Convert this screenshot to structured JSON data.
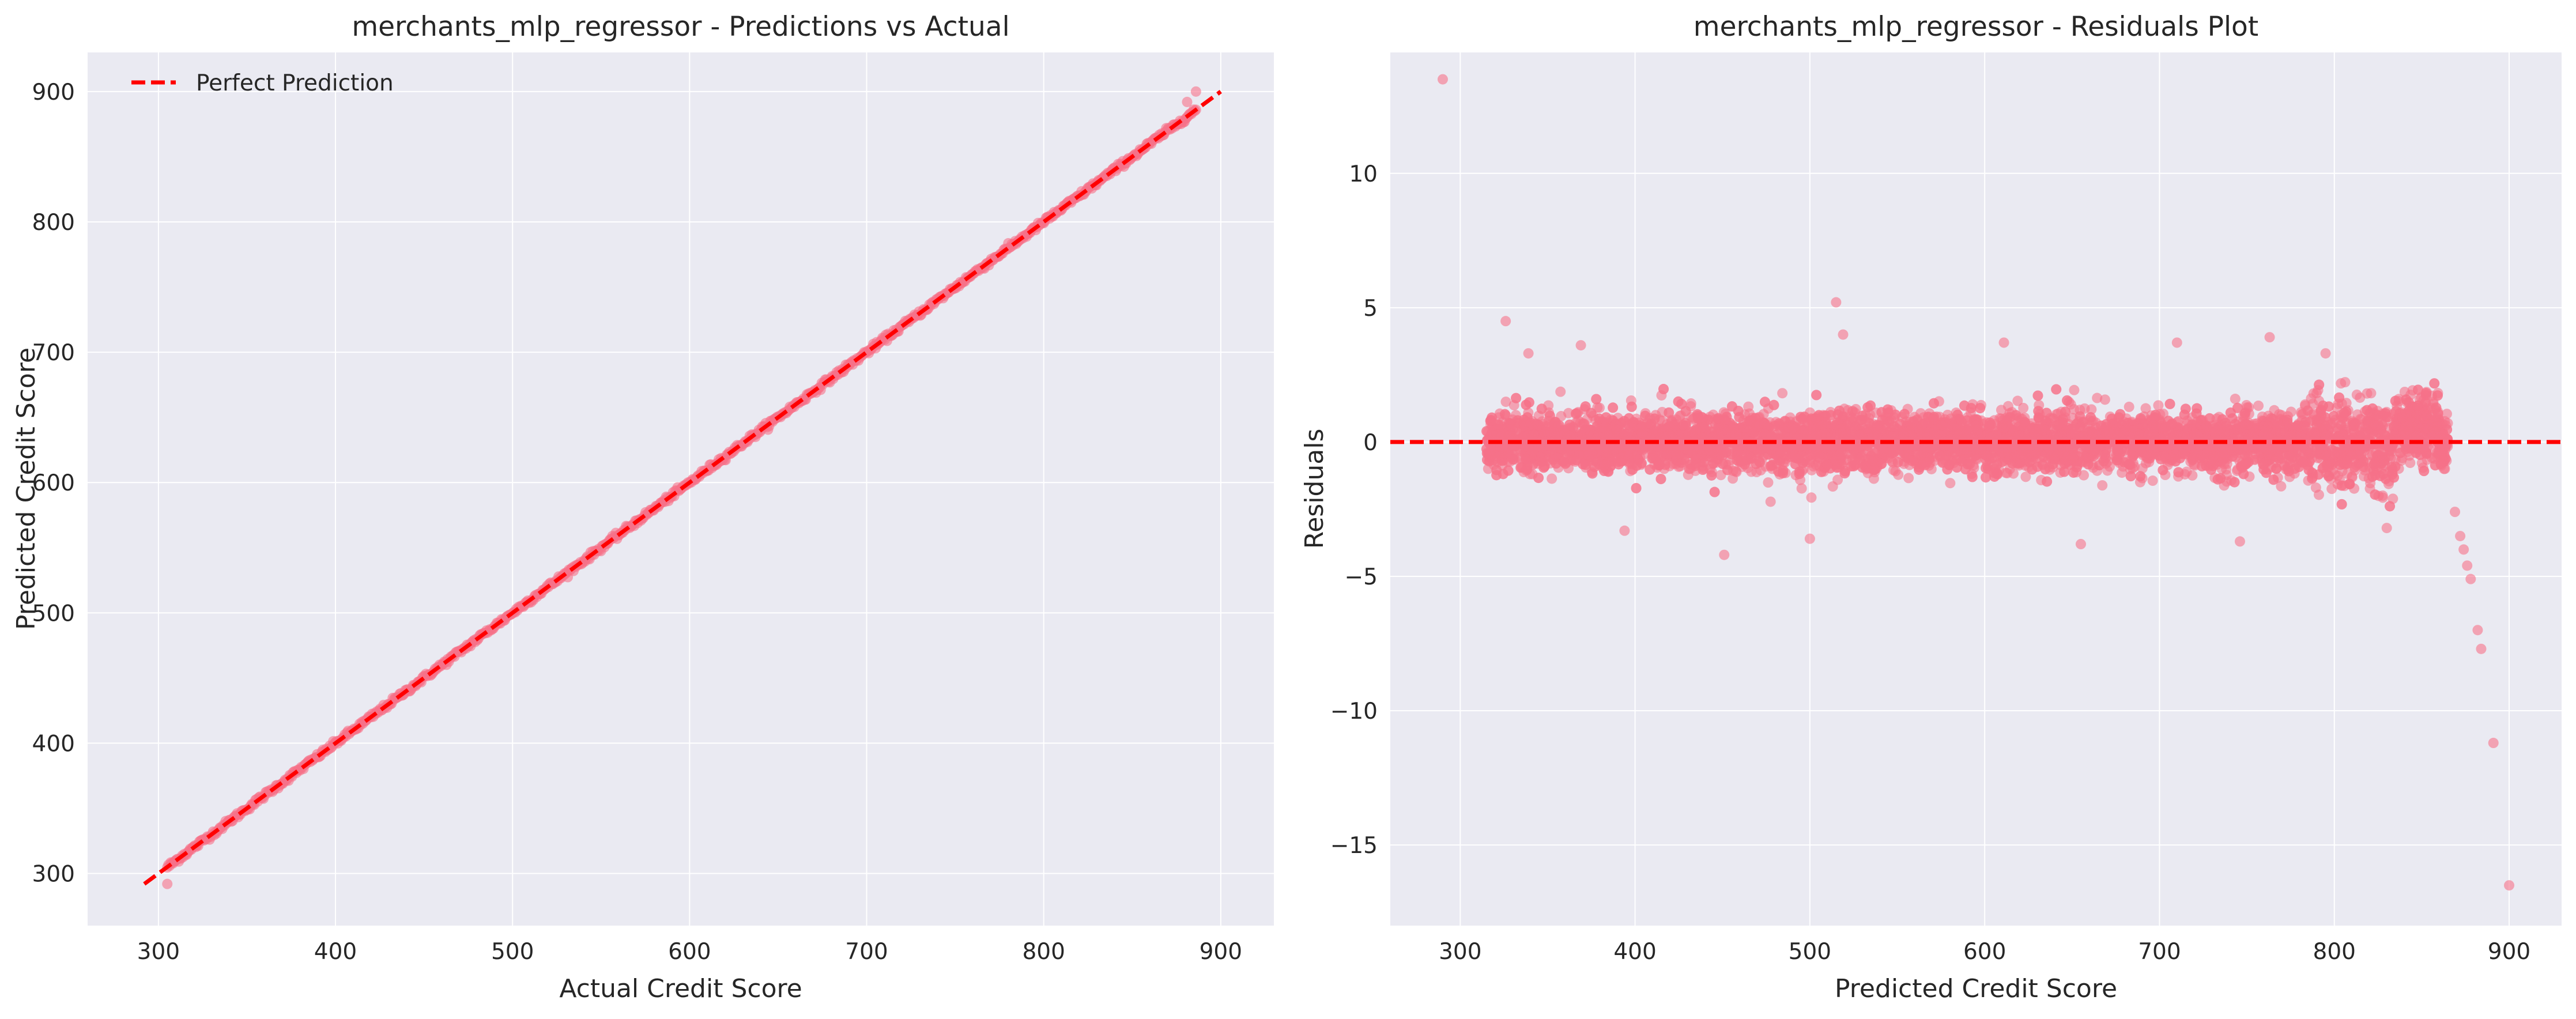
{
  "colors": {
    "plot_bg": "#eaeaf2",
    "grid": "#ffffff",
    "point": "#f77189",
    "reference_line": "#ff0000",
    "text": "#262626"
  },
  "chart_data": [
    {
      "type": "scatter",
      "title": "merchants_mlp_regressor - Predictions vs Actual",
      "xlabel": "Actual Credit Score",
      "ylabel": "Predicted Credit Score",
      "xlim": [
        260,
        930
      ],
      "ylim": [
        260,
        930
      ],
      "xticks": [
        300,
        400,
        500,
        600,
        700,
        800,
        900
      ],
      "yticks": [
        300,
        400,
        500,
        600,
        700,
        800,
        900
      ],
      "grid": true,
      "legend": {
        "position": "top-left",
        "entries": [
          "Perfect Prediction"
        ]
      },
      "reference_line": {
        "label": "Perfect Prediction",
        "style": "dashed",
        "x": [
          292,
          900
        ],
        "y": [
          292,
          900
        ]
      },
      "series": [
        {
          "name": "predictions",
          "description": "points lying along the diagonal y = x",
          "x_range": [
            305,
            886
          ],
          "y_range": [
            292,
            900
          ],
          "outliers": [
            {
              "x": 305,
              "y": 292
            },
            {
              "x": 886,
              "y": 900
            },
            {
              "x": 881,
              "y": 892
            }
          ]
        }
      ]
    },
    {
      "type": "scatter",
      "title": "merchants_mlp_regressor - Residuals Plot",
      "xlabel": "Predicted Credit Score",
      "ylabel": "Residuals",
      "xlim": [
        260,
        930
      ],
      "ylim": [
        -18,
        14.5
      ],
      "xticks": [
        300,
        400,
        500,
        600,
        700,
        800,
        900
      ],
      "yticks": [
        -15,
        -10,
        -5,
        0,
        5,
        10
      ],
      "ytick_labels": [
        "−15",
        "−10",
        "−5",
        "0",
        "5",
        "10"
      ],
      "grid": true,
      "reference_line": {
        "style": "dashed",
        "y": 0
      },
      "series": [
        {
          "name": "residuals",
          "description": "dense band of residuals around 0 between x=315 and x=865",
          "band": {
            "x_range": [
              315,
              865
            ],
            "y_spread": [
              -2,
              2
            ]
          },
          "outliers": [
            {
              "x": 290,
              "y": 13.5
            },
            {
              "x": 326,
              "y": 4.5
            },
            {
              "x": 339,
              "y": 3.3
            },
            {
              "x": 369,
              "y": 3.6
            },
            {
              "x": 394,
              "y": -3.3
            },
            {
              "x": 451,
              "y": -4.2
            },
            {
              "x": 500,
              "y": -3.6
            },
            {
              "x": 515,
              "y": 5.2
            },
            {
              "x": 519,
              "y": 4.0
            },
            {
              "x": 611,
              "y": 3.7
            },
            {
              "x": 655,
              "y": -3.8
            },
            {
              "x": 710,
              "y": 3.7
            },
            {
              "x": 746,
              "y": -3.7
            },
            {
              "x": 763,
              "y": 3.9
            },
            {
              "x": 795,
              "y": 3.3
            },
            {
              "x": 830,
              "y": -3.2
            },
            {
              "x": 869,
              "y": -2.6
            },
            {
              "x": 872,
              "y": -3.5
            },
            {
              "x": 874,
              "y": -4.0
            },
            {
              "x": 876,
              "y": -4.6
            },
            {
              "x": 878,
              "y": -5.1
            },
            {
              "x": 882,
              "y": -7.0
            },
            {
              "x": 884,
              "y": -7.7
            },
            {
              "x": 891,
              "y": -11.2
            },
            {
              "x": 900,
              "y": -16.5
            }
          ]
        }
      ]
    }
  ]
}
